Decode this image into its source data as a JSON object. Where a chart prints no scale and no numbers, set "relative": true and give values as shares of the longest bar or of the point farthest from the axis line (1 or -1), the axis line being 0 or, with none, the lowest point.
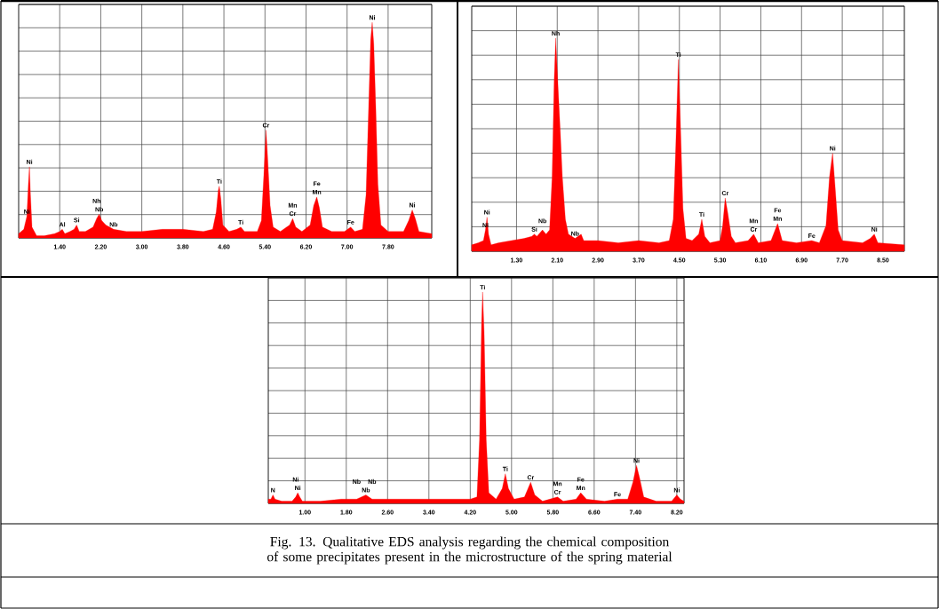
{
  "chart_data": [
    {
      "type": "area",
      "relative": true,
      "color": "#ff0000",
      "grid": true,
      "tick_labels": "x",
      "xlim": [
        0.6,
        8.65
      ],
      "xticks": [
        {
          "value": 1.4,
          "label": "1.40"
        },
        {
          "value": 2.2,
          "label": "2.20"
        },
        {
          "value": 3.0,
          "label": "3.00"
        },
        {
          "value": 3.8,
          "label": "3.80"
        },
        {
          "value": 4.6,
          "label": "4.60"
        },
        {
          "value": 5.4,
          "label": "5.40"
        },
        {
          "value": 6.2,
          "label": "6.20"
        },
        {
          "value": 7.0,
          "label": "7.00"
        },
        {
          "value": 7.8,
          "label": "7.80"
        }
      ],
      "x": [
        0.6,
        0.7,
        0.76,
        0.79,
        0.81,
        0.83,
        0.86,
        0.95,
        1.1,
        1.3,
        1.4,
        1.45,
        1.5,
        1.6,
        1.68,
        1.73,
        1.78,
        1.9,
        2.05,
        2.12,
        2.17,
        2.22,
        2.3,
        2.45,
        2.7,
        3.0,
        3.4,
        3.8,
        4.2,
        4.38,
        4.45,
        4.49,
        4.51,
        4.54,
        4.58,
        4.7,
        4.85,
        4.93,
        5.0,
        5.25,
        5.33,
        5.38,
        5.42,
        5.45,
        5.5,
        5.56,
        5.7,
        5.88,
        5.94,
        6.0,
        6.12,
        6.28,
        6.35,
        6.41,
        6.46,
        6.52,
        6.7,
        6.95,
        7.07,
        7.15,
        7.3,
        7.37,
        7.42,
        7.46,
        7.49,
        7.52,
        7.56,
        7.6,
        7.66,
        7.8,
        8.1,
        8.2,
        8.27,
        8.33,
        8.4,
        8.65
      ],
      "values": [
        0.02,
        0.04,
        0.1,
        0.25,
        0.33,
        0.2,
        0.05,
        0.01,
        0.01,
        0.02,
        0.03,
        0.04,
        0.02,
        0.03,
        0.04,
        0.06,
        0.03,
        0.03,
        0.05,
        0.09,
        0.11,
        0.08,
        0.06,
        0.04,
        0.03,
        0.03,
        0.04,
        0.04,
        0.03,
        0.04,
        0.12,
        0.22,
        0.24,
        0.18,
        0.06,
        0.03,
        0.04,
        0.05,
        0.03,
        0.03,
        0.08,
        0.3,
        0.5,
        0.38,
        0.15,
        0.05,
        0.03,
        0.06,
        0.09,
        0.05,
        0.03,
        0.06,
        0.15,
        0.19,
        0.14,
        0.05,
        0.03,
        0.03,
        0.05,
        0.03,
        0.04,
        0.2,
        0.6,
        0.92,
        1.0,
        0.9,
        0.6,
        0.25,
        0.06,
        0.03,
        0.03,
        0.08,
        0.13,
        0.09,
        0.03,
        0.02
      ],
      "annotations": [
        {
          "text": "Ni",
          "x": 0.76,
          "y": 0.1
        },
        {
          "text": "Ni",
          "x": 0.81,
          "y": 0.33
        },
        {
          "text": "Al",
          "x": 1.45,
          "y": 0.04
        },
        {
          "text": "Si",
          "x": 1.73,
          "y": 0.06
        },
        {
          "text": "Nb",
          "x": 2.17,
          "y": 0.11
        },
        {
          "text": "Nh",
          "x": 2.12,
          "y": 0.09
        },
        {
          "text": "Nb",
          "x": 2.45,
          "y": 0.04
        },
        {
          "text": "Ti",
          "x": 4.51,
          "y": 0.24
        },
        {
          "text": "Ti",
          "x": 4.93,
          "y": 0.05
        },
        {
          "text": "Cr",
          "x": 5.42,
          "y": 0.5
        },
        {
          "text": "Cr",
          "x": 5.94,
          "y": 0.09
        },
        {
          "text": "Mn",
          "x": 5.94,
          "y": 0.09
        },
        {
          "text": "Mn",
          "x": 6.41,
          "y": 0.19
        },
        {
          "text": "Fe",
          "x": 6.41,
          "y": 0.19
        },
        {
          "text": "Fe",
          "x": 7.07,
          "y": 0.05
        },
        {
          "text": "Ni",
          "x": 7.49,
          "y": 1.0
        },
        {
          "text": "Ni",
          "x": 8.27,
          "y": 0.13
        }
      ]
    },
    {
      "type": "area",
      "relative": true,
      "color": "#ff0000",
      "grid": true,
      "tick_labels": "x",
      "xlim": [
        0.42,
        8.92
      ],
      "xticks": [
        {
          "value": 1.3,
          "label": "1.30"
        },
        {
          "value": 2.1,
          "label": "2.10"
        },
        {
          "value": 2.9,
          "label": "2.90"
        },
        {
          "value": 3.7,
          "label": "3.70"
        },
        {
          "value": 4.5,
          "label": "4.50"
        },
        {
          "value": 5.3,
          "label": "5.30"
        },
        {
          "value": 6.1,
          "label": "6.10"
        },
        {
          "value": 6.9,
          "label": "6.90"
        },
        {
          "value": 7.7,
          "label": "7.70"
        },
        {
          "value": 8.5,
          "label": "8.50"
        }
      ],
      "x": [
        0.42,
        0.55,
        0.65,
        0.69,
        0.72,
        0.75,
        0.8,
        0.95,
        1.2,
        1.45,
        1.6,
        1.65,
        1.7,
        1.81,
        1.88,
        1.95,
        2.0,
        2.04,
        2.07,
        2.11,
        2.16,
        2.2,
        2.26,
        2.32,
        2.45,
        2.57,
        2.62,
        2.9,
        3.3,
        3.7,
        4.1,
        4.3,
        4.38,
        4.43,
        4.48,
        4.52,
        4.57,
        4.63,
        4.75,
        4.88,
        4.94,
        5.0,
        5.1,
        5.3,
        5.35,
        5.4,
        5.45,
        5.52,
        5.6,
        5.85,
        5.96,
        6.05,
        6.3,
        6.43,
        6.52,
        6.8,
        7.1,
        7.25,
        7.38,
        7.45,
        7.51,
        7.56,
        7.62,
        7.7,
        8.1,
        8.25,
        8.33,
        8.4,
        8.92
      ],
      "values": [
        0.03,
        0.04,
        0.05,
        0.1,
        0.16,
        0.08,
        0.03,
        0.04,
        0.05,
        0.06,
        0.07,
        0.08,
        0.07,
        0.1,
        0.08,
        0.1,
        0.35,
        0.8,
        1.0,
        0.8,
        0.56,
        0.35,
        0.15,
        0.08,
        0.06,
        0.08,
        0.05,
        0.05,
        0.04,
        0.05,
        0.04,
        0.05,
        0.15,
        0.5,
        0.9,
        0.6,
        0.2,
        0.06,
        0.05,
        0.08,
        0.15,
        0.07,
        0.04,
        0.05,
        0.12,
        0.25,
        0.18,
        0.07,
        0.04,
        0.05,
        0.08,
        0.04,
        0.05,
        0.13,
        0.05,
        0.04,
        0.05,
        0.04,
        0.12,
        0.35,
        0.46,
        0.3,
        0.1,
        0.05,
        0.04,
        0.06,
        0.08,
        0.04,
        0.03
      ],
      "annotations": [
        {
          "text": "Ni",
          "x": 0.69,
          "y": 0.1
        },
        {
          "text": "Ni",
          "x": 0.72,
          "y": 0.16
        },
        {
          "text": "Si",
          "x": 1.65,
          "y": 0.08
        },
        {
          "text": "Nb",
          "x": 1.81,
          "y": 0.1
        },
        {
          "text": "Nh",
          "x": 2.07,
          "y": 1.0
        },
        {
          "text": "Nb",
          "x": 2.45,
          "y": 0.06
        },
        {
          "text": "Ti",
          "x": 4.48,
          "y": 0.9
        },
        {
          "text": "Ti",
          "x": 4.94,
          "y": 0.15
        },
        {
          "text": "Cr",
          "x": 5.4,
          "y": 0.25
        },
        {
          "text": "Cr",
          "x": 5.96,
          "y": 0.08
        },
        {
          "text": "Mn",
          "x": 5.96,
          "y": 0.08
        },
        {
          "text": "Mn",
          "x": 6.43,
          "y": 0.13
        },
        {
          "text": "Fe",
          "x": 6.43,
          "y": 0.13
        },
        {
          "text": "Fe",
          "x": 7.1,
          "y": 0.05
        },
        {
          "text": "Ni",
          "x": 7.51,
          "y": 0.46
        },
        {
          "text": "Ni",
          "x": 8.33,
          "y": 0.08
        }
      ]
    },
    {
      "type": "area",
      "relative": true,
      "color": "#ff0000",
      "grid": true,
      "tick_labels": "x",
      "xlim": [
        0.29,
        8.34
      ],
      "xticks": [
        {
          "value": 1.0,
          "label": "1.00"
        },
        {
          "value": 1.8,
          "label": "1.80"
        },
        {
          "value": 2.6,
          "label": "2.60"
        },
        {
          "value": 3.4,
          "label": "3.40"
        },
        {
          "value": 4.2,
          "label": "4.20"
        },
        {
          "value": 5.0,
          "label": "5.00"
        },
        {
          "value": 5.8,
          "label": "5.80"
        },
        {
          "value": 6.6,
          "label": "6.60"
        },
        {
          "value": 7.4,
          "label": "7.40"
        },
        {
          "value": 8.2,
          "label": "8.20"
        }
      ],
      "x": [
        0.29,
        0.34,
        0.38,
        0.42,
        0.55,
        0.75,
        0.82,
        0.86,
        0.9,
        0.95,
        1.3,
        1.7,
        2.0,
        2.18,
        2.3,
        2.8,
        3.4,
        3.8,
        4.2,
        4.33,
        4.38,
        4.42,
        4.44,
        4.47,
        4.51,
        4.56,
        4.7,
        4.82,
        4.88,
        4.94,
        5.05,
        5.25,
        5.37,
        5.45,
        5.6,
        5.89,
        6.0,
        6.25,
        6.34,
        6.45,
        6.8,
        7.05,
        7.25,
        7.35,
        7.42,
        7.48,
        7.56,
        7.8,
        8.1,
        8.2,
        8.27,
        8.34
      ],
      "values": [
        0.02,
        0.02,
        0.04,
        0.02,
        0.01,
        0.01,
        0.03,
        0.05,
        0.03,
        0.01,
        0.01,
        0.02,
        0.02,
        0.04,
        0.02,
        0.02,
        0.02,
        0.02,
        0.02,
        0.03,
        0.3,
        0.85,
        1.0,
        0.8,
        0.3,
        0.05,
        0.02,
        0.07,
        0.14,
        0.07,
        0.02,
        0.03,
        0.1,
        0.04,
        0.01,
        0.03,
        0.01,
        0.02,
        0.05,
        0.02,
        0.01,
        0.02,
        0.02,
        0.1,
        0.18,
        0.12,
        0.03,
        0.01,
        0.01,
        0.04,
        0.02,
        0.01
      ],
      "annotations": [
        {
          "text": "N",
          "x": 0.38,
          "y": 0.04
        },
        {
          "text": "Ni",
          "x": 0.86,
          "y": 0.05
        },
        {
          "text": "Ni",
          "x": 0.82,
          "y": 0.03
        },
        {
          "text": "Nb",
          "x": 2.18,
          "y": 0.04
        },
        {
          "text": "Nb",
          "x": 2.0,
          "y": 0.02
        },
        {
          "text": "Nb",
          "x": 2.3,
          "y": 0.02
        },
        {
          "text": "Ti",
          "x": 4.44,
          "y": 1.0
        },
        {
          "text": "Ti",
          "x": 4.88,
          "y": 0.14
        },
        {
          "text": "Cr",
          "x": 5.37,
          "y": 0.1
        },
        {
          "text": "Cr",
          "x": 5.89,
          "y": 0.03
        },
        {
          "text": "Mn",
          "x": 5.89,
          "y": 0.03
        },
        {
          "text": "Mn",
          "x": 6.34,
          "y": 0.05
        },
        {
          "text": "Fe",
          "x": 6.34,
          "y": 0.05
        },
        {
          "text": "Fe",
          "x": 7.05,
          "y": 0.02
        },
        {
          "text": "Ni",
          "x": 7.42,
          "y": 0.18
        },
        {
          "text": "Ni",
          "x": 8.2,
          "y": 0.04
        },
        "Fig. 13. Qualitative EDS analysis regarding the chemical composition of some precipitates present in the microstructure of the spring material"
      ]
    }
  ]
}
